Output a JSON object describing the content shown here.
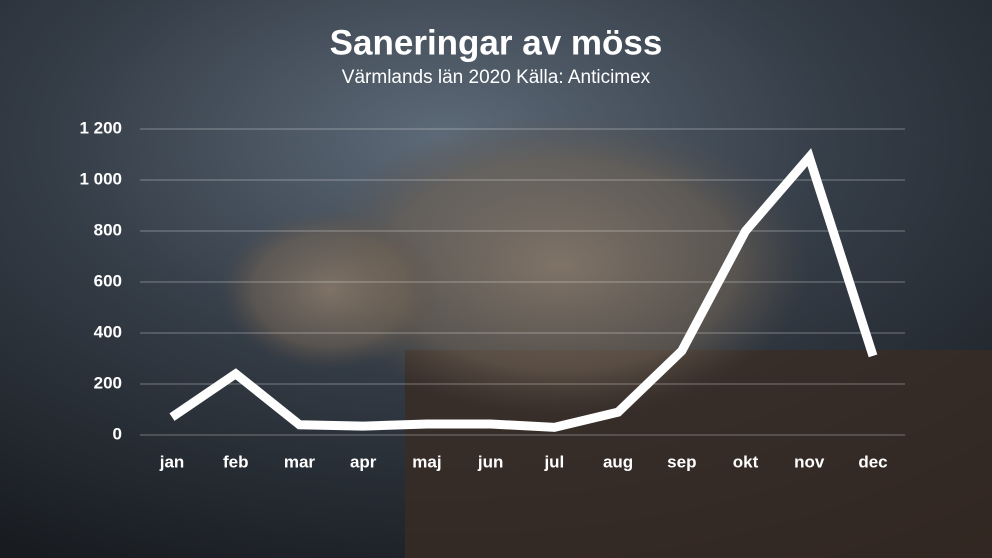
{
  "chart_data": {
    "type": "line",
    "title": "Saneringar av möss",
    "subtitle": "Värmlands län 2020 Källa: Anticimex",
    "categories": [
      "jan",
      "feb",
      "mar",
      "apr",
      "maj",
      "jun",
      "jul",
      "aug",
      "sep",
      "okt",
      "nov",
      "dec"
    ],
    "values": [
      70,
      240,
      40,
      35,
      43,
      43,
      30,
      90,
      330,
      800,
      1090,
      310
    ],
    "color": "#ffffff",
    "ylim": [
      0,
      1200
    ],
    "yticks": [
      0,
      200,
      400,
      600,
      800,
      {
        "value": 1000,
        "label": "1 000"
      },
      {
        "value": 1200,
        "label": "1 200"
      }
    ],
    "grid": true
  }
}
